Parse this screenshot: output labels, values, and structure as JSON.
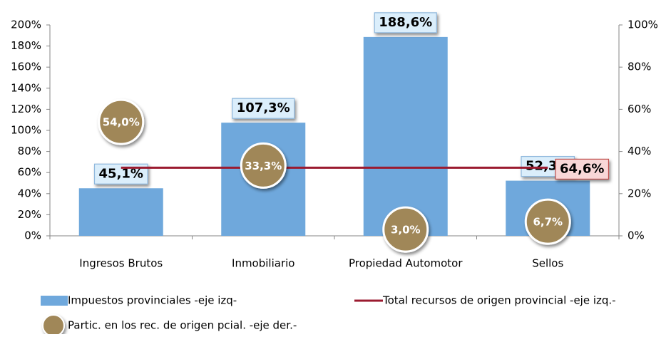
{
  "chart_data": {
    "type": "bar",
    "categories": [
      "Ingresos Brutos",
      "Inmobiliario",
      "Propiedad Automotor",
      "Sellos"
    ],
    "ylim": [
      0,
      200
    ],
    "yticks": [
      {
        "value": 0,
        "label": "0%"
      },
      {
        "value": 20,
        "label": "20%"
      },
      {
        "value": 40,
        "label": "40%"
      },
      {
        "value": 60,
        "label": "60%"
      },
      {
        "value": 80,
        "label": "80%"
      },
      {
        "value": 100,
        "label": "100%"
      },
      {
        "value": 120,
        "label": "120%"
      },
      {
        "value": 140,
        "label": "140%"
      },
      {
        "value": 160,
        "label": "160%"
      },
      {
        "value": 180,
        "label": "180%"
      },
      {
        "value": 200,
        "label": "200%"
      }
    ],
    "y2lim": [
      0,
      100
    ],
    "y2ticks": [
      {
        "value": 0,
        "label": "0%"
      },
      {
        "value": 20,
        "label": "20%"
      },
      {
        "value": 40,
        "label": "40%"
      },
      {
        "value": 60,
        "label": "60%"
      },
      {
        "value": 80,
        "label": "80%"
      },
      {
        "value": 100,
        "label": "100%"
      }
    ],
    "series": [
      {
        "name": "Impuestos provinciales -eje izq-",
        "type": "bar",
        "color": "#6fa8dc",
        "values": [
          45.1,
          107.3,
          188.6,
          52.3
        ],
        "value_labels": [
          "45,1%",
          "107,3%",
          "188,6%",
          "52,3%"
        ]
      },
      {
        "name": "Total recursos de origen provincial -eje izq.-",
        "type": "line",
        "color": "#9b1b30",
        "values": [
          64.6,
          64.6,
          64.6,
          64.6
        ],
        "value_labels": [
          null,
          null,
          null,
          "64,6%"
        ]
      },
      {
        "name": "Partic. en los rec. de origen pcial. -eje der.-",
        "type": "bubble",
        "axis": "y2",
        "color": "#a08758",
        "values": [
          54.0,
          33.3,
          3.0,
          6.7
        ],
        "value_labels": [
          "54,0%",
          "33,3%",
          "3,0%",
          "6,7%"
        ]
      }
    ],
    "grid": false
  }
}
